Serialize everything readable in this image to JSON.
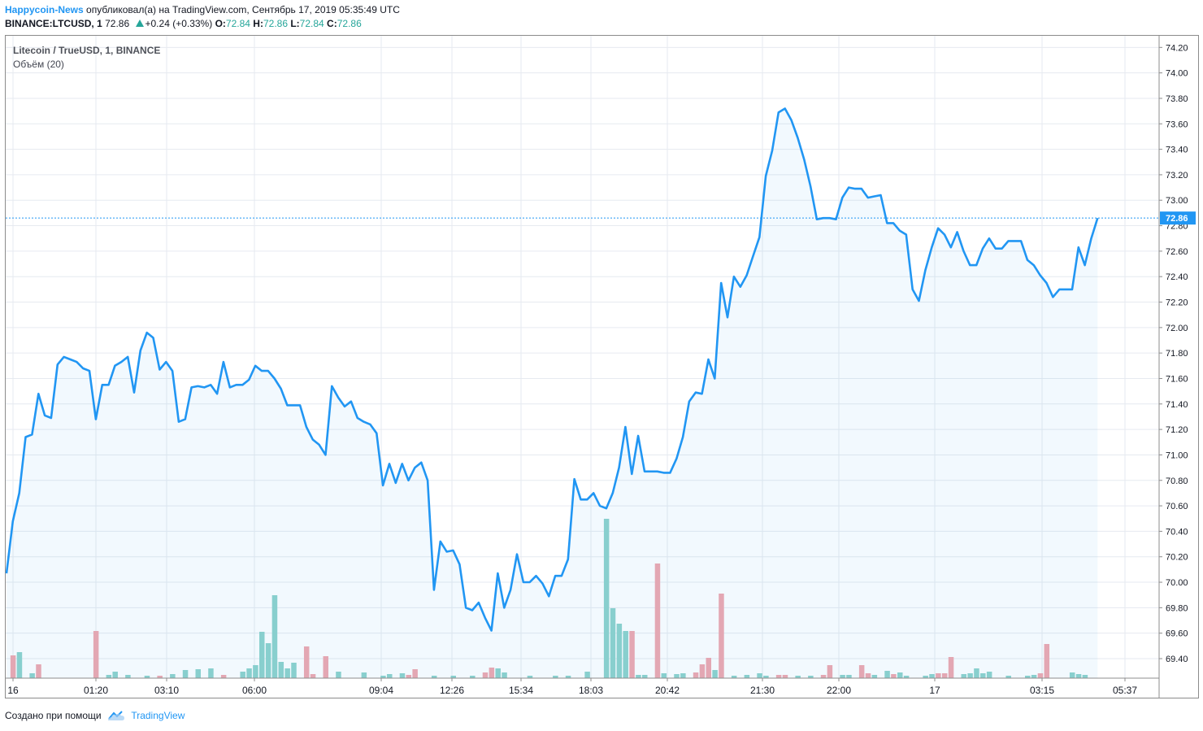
{
  "header": {
    "author": "Happycoin-News",
    "published": "опубликовал(а) на TradingView.com, Сентябрь 17, 2019 05:35:49 UTC",
    "symbol": "BINANCE:LTCUSD, 1",
    "last": "72.86",
    "change": "+0.24 (+0.33%)",
    "o_label": "O:",
    "o_value": "72.84",
    "h_label": "H:",
    "h_value": "72.86",
    "l_label": "L:",
    "l_value": "72.84",
    "c_label": "C:",
    "c_value": "72.86"
  },
  "legend": {
    "name": "Litecoin / TrueUSD, 1, BINANCE",
    "volume": "Объём (20)"
  },
  "footer": {
    "created_with": "Создано при помощи",
    "brand": "TradingView",
    "logo_icon": "tradingview-cloud-icon"
  },
  "colors": {
    "line": "#2196f3",
    "area": "#2196f3",
    "grid": "#e6eaf0",
    "vol_up": "#8fd3cc",
    "vol_down": "#f0a8b0",
    "price_tag": "#2196f3"
  },
  "chart_data": {
    "type": "area",
    "title": "Litecoin / TrueUSD, 1, BINANCE",
    "ylim": [
      69.18,
      74.24
    ],
    "y_ticks": [
      "74.20",
      "74.00",
      "73.80",
      "73.60",
      "73.40",
      "73.20",
      "73.00",
      "72.80",
      "72.60",
      "72.40",
      "72.20",
      "72.00",
      "71.80",
      "71.60",
      "71.40",
      "71.20",
      "71.00",
      "70.80",
      "70.60",
      "70.40",
      "70.20",
      "70.00",
      "69.80",
      "69.60",
      "69.40"
    ],
    "x_ticks": [
      "16",
      "01:20",
      "03:10",
      "06:00",
      "09:04",
      "12:26",
      "15:34",
      "18:03",
      "20:42",
      "21:30",
      "22:00",
      "17",
      "03:15",
      "05:37"
    ],
    "last_price": "72.86",
    "price": [
      70.07,
      70.48,
      70.7,
      71.14,
      71.16,
      71.48,
      71.31,
      71.29,
      71.71,
      71.77,
      71.75,
      71.73,
      71.68,
      71.66,
      71.28,
      71.55,
      71.55,
      71.7,
      71.73,
      71.77,
      71.49,
      71.82,
      71.96,
      71.92,
      71.67,
      71.73,
      71.66,
      71.26,
      71.28,
      71.53,
      71.54,
      71.53,
      71.55,
      71.48,
      71.73,
      71.53,
      71.55,
      71.55,
      71.59,
      71.7,
      71.66,
      71.66,
      71.6,
      71.52,
      71.39,
      71.39,
      71.39,
      71.22,
      71.12,
      71.08,
      71.0,
      71.54,
      71.45,
      71.38,
      71.42,
      71.29,
      71.26,
      71.24,
      71.17,
      70.76,
      70.93,
      70.78,
      70.93,
      70.8,
      70.9,
      70.94,
      70.8,
      69.94,
      70.32,
      70.24,
      70.25,
      70.14,
      69.8,
      69.78,
      69.84,
      69.72,
      69.62,
      70.07,
      69.8,
      69.94,
      70.22,
      70.0,
      70.0,
      70.05,
      69.99,
      69.89,
      70.05,
      70.05,
      70.18,
      70.81,
      70.65,
      70.65,
      70.7,
      70.6,
      70.58,
      70.7,
      70.9,
      71.22,
      70.85,
      71.15,
      70.87,
      70.87,
      70.87,
      70.86,
      70.86,
      70.97,
      71.14,
      71.42,
      71.49,
      71.48,
      71.75,
      71.6,
      72.35,
      72.08,
      72.4,
      72.32,
      72.41,
      72.56,
      72.71,
      73.19,
      73.39,
      73.69,
      73.72,
      73.63,
      73.49,
      73.32,
      73.11,
      72.85,
      72.86,
      72.86,
      72.85,
      73.02,
      73.1,
      73.09,
      73.09,
      73.02,
      73.03,
      73.04,
      72.82,
      72.82,
      72.76,
      72.73,
      72.3,
      72.21,
      72.45,
      72.63,
      72.78,
      72.73,
      72.63,
      72.75,
      72.6,
      72.49,
      72.49,
      72.62,
      72.7,
      72.62,
      72.62,
      72.68,
      72.68,
      72.68,
      72.53,
      72.49,
      72.41,
      72.35,
      72.24,
      72.3,
      72.3,
      72.3,
      72.63,
      72.49,
      72.7,
      72.86
    ],
    "volume": [
      {
        "i": 1,
        "v": 28,
        "dir": "down"
      },
      {
        "i": 2,
        "v": 32,
        "dir": "up"
      },
      {
        "i": 4,
        "v": 6,
        "dir": "up"
      },
      {
        "i": 5,
        "v": 17,
        "dir": "down"
      },
      {
        "i": 14,
        "v": 58,
        "dir": "down"
      },
      {
        "i": 16,
        "v": 4,
        "dir": "up"
      },
      {
        "i": 17,
        "v": 8,
        "dir": "up"
      },
      {
        "i": 19,
        "v": 4,
        "dir": "up"
      },
      {
        "i": 22,
        "v": 3,
        "dir": "up"
      },
      {
        "i": 24,
        "v": 3,
        "dir": "down"
      },
      {
        "i": 26,
        "v": 5,
        "dir": "up"
      },
      {
        "i": 28,
        "v": 10,
        "dir": "up"
      },
      {
        "i": 30,
        "v": 11,
        "dir": "up"
      },
      {
        "i": 32,
        "v": 12,
        "dir": "up"
      },
      {
        "i": 34,
        "v": 4,
        "dir": "down"
      },
      {
        "i": 37,
        "v": 8,
        "dir": "up"
      },
      {
        "i": 38,
        "v": 12,
        "dir": "up"
      },
      {
        "i": 39,
        "v": 16,
        "dir": "up"
      },
      {
        "i": 40,
        "v": 57,
        "dir": "up"
      },
      {
        "i": 41,
        "v": 43,
        "dir": "up"
      },
      {
        "i": 42,
        "v": 102,
        "dir": "up"
      },
      {
        "i": 43,
        "v": 20,
        "dir": "up"
      },
      {
        "i": 44,
        "v": 12,
        "dir": "up"
      },
      {
        "i": 45,
        "v": 19,
        "dir": "up"
      },
      {
        "i": 47,
        "v": 39,
        "dir": "down"
      },
      {
        "i": 48,
        "v": 5,
        "dir": "down"
      },
      {
        "i": 50,
        "v": 27,
        "dir": "down"
      },
      {
        "i": 52,
        "v": 8,
        "dir": "up"
      },
      {
        "i": 56,
        "v": 7,
        "dir": "up"
      },
      {
        "i": 59,
        "v": 3,
        "dir": "up"
      },
      {
        "i": 60,
        "v": 5,
        "dir": "up"
      },
      {
        "i": 62,
        "v": 6,
        "dir": "up"
      },
      {
        "i": 63,
        "v": 4,
        "dir": "down"
      },
      {
        "i": 64,
        "v": 11,
        "dir": "down"
      },
      {
        "i": 67,
        "v": 3,
        "dir": "up"
      },
      {
        "i": 70,
        "v": 3,
        "dir": "up"
      },
      {
        "i": 73,
        "v": 3,
        "dir": "up"
      },
      {
        "i": 75,
        "v": 7,
        "dir": "down"
      },
      {
        "i": 76,
        "v": 13,
        "dir": "down"
      },
      {
        "i": 77,
        "v": 12,
        "dir": "up"
      },
      {
        "i": 78,
        "v": 7,
        "dir": "up"
      },
      {
        "i": 82,
        "v": 3,
        "dir": "up"
      },
      {
        "i": 86,
        "v": 3,
        "dir": "up"
      },
      {
        "i": 88,
        "v": 3,
        "dir": "up"
      },
      {
        "i": 91,
        "v": 8,
        "dir": "up"
      },
      {
        "i": 94,
        "v": 196,
        "dir": "up"
      },
      {
        "i": 95,
        "v": 86,
        "dir": "up"
      },
      {
        "i": 96,
        "v": 67,
        "dir": "up"
      },
      {
        "i": 97,
        "v": 58,
        "dir": "up"
      },
      {
        "i": 98,
        "v": 58,
        "dir": "down"
      },
      {
        "i": 99,
        "v": 4,
        "dir": "up"
      },
      {
        "i": 100,
        "v": 4,
        "dir": "up"
      },
      {
        "i": 102,
        "v": 141,
        "dir": "down"
      },
      {
        "i": 103,
        "v": 6,
        "dir": "up"
      },
      {
        "i": 105,
        "v": 5,
        "dir": "up"
      },
      {
        "i": 106,
        "v": 6,
        "dir": "up"
      },
      {
        "i": 108,
        "v": 7,
        "dir": "down"
      },
      {
        "i": 109,
        "v": 17,
        "dir": "down"
      },
      {
        "i": 110,
        "v": 25,
        "dir": "down"
      },
      {
        "i": 111,
        "v": 10,
        "dir": "up"
      },
      {
        "i": 112,
        "v": 104,
        "dir": "down"
      },
      {
        "i": 114,
        "v": 3,
        "dir": "up"
      },
      {
        "i": 116,
        "v": 4,
        "dir": "up"
      },
      {
        "i": 118,
        "v": 6,
        "dir": "up"
      },
      {
        "i": 119,
        "v": 3,
        "dir": "up"
      },
      {
        "i": 121,
        "v": 4,
        "dir": "down"
      },
      {
        "i": 122,
        "v": 4,
        "dir": "down"
      },
      {
        "i": 124,
        "v": 3,
        "dir": "up"
      },
      {
        "i": 126,
        "v": 3,
        "dir": "up"
      },
      {
        "i": 128,
        "v": 4,
        "dir": "down"
      },
      {
        "i": 129,
        "v": 16,
        "dir": "down"
      },
      {
        "i": 131,
        "v": 4,
        "dir": "up"
      },
      {
        "i": 132,
        "v": 4,
        "dir": "up"
      },
      {
        "i": 134,
        "v": 16,
        "dir": "down"
      },
      {
        "i": 135,
        "v": 6,
        "dir": "down"
      },
      {
        "i": 136,
        "v": 4,
        "dir": "up"
      },
      {
        "i": 138,
        "v": 9,
        "dir": "up"
      },
      {
        "i": 139,
        "v": 5,
        "dir": "down"
      },
      {
        "i": 140,
        "v": 7,
        "dir": "up"
      },
      {
        "i": 141,
        "v": 3,
        "dir": "up"
      },
      {
        "i": 144,
        "v": 3,
        "dir": "up"
      },
      {
        "i": 145,
        "v": 5,
        "dir": "up"
      },
      {
        "i": 146,
        "v": 6,
        "dir": "down"
      },
      {
        "i": 147,
        "v": 6,
        "dir": "down"
      },
      {
        "i": 148,
        "v": 26,
        "dir": "down"
      },
      {
        "i": 150,
        "v": 5,
        "dir": "up"
      },
      {
        "i": 151,
        "v": 6,
        "dir": "up"
      },
      {
        "i": 152,
        "v": 12,
        "dir": "up"
      },
      {
        "i": 153,
        "v": 6,
        "dir": "up"
      },
      {
        "i": 154,
        "v": 8,
        "dir": "up"
      },
      {
        "i": 157,
        "v": 3,
        "dir": "up"
      },
      {
        "i": 160,
        "v": 3,
        "dir": "up"
      },
      {
        "i": 161,
        "v": 4,
        "dir": "up"
      },
      {
        "i": 162,
        "v": 6,
        "dir": "down"
      },
      {
        "i": 163,
        "v": 42,
        "dir": "down"
      },
      {
        "i": 167,
        "v": 7,
        "dir": "up"
      },
      {
        "i": 168,
        "v": 5,
        "dir": "up"
      },
      {
        "i": 169,
        "v": 4,
        "dir": "up"
      }
    ]
  }
}
